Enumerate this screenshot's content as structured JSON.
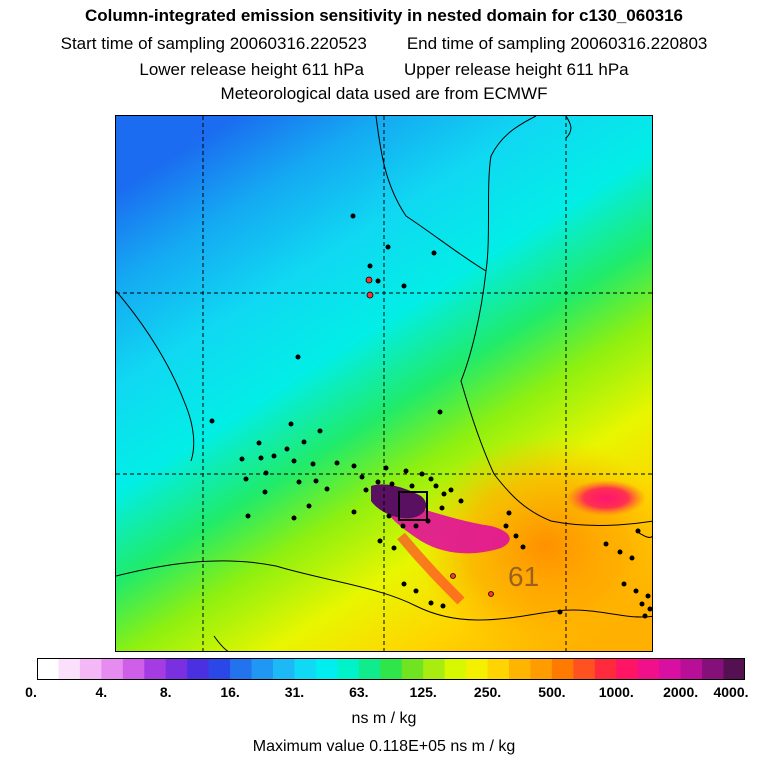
{
  "header": {
    "title": "Column-integrated emission sensitivity in nested domain for c130_060316",
    "start_label": "Start time of sampling 20060316.220523",
    "end_label": "End time of sampling 20060316.220803",
    "lower_label": "Lower release height  611 hPa",
    "upper_label": "Upper release height  611 hPa",
    "met_label": "Meteorological data used are from ECMWF"
  },
  "map": {
    "contour_label": "61"
  },
  "colorbar": {
    "colors": [
      "#ffffff",
      "#fbe0fb",
      "#f3b8f5",
      "#e68cf0",
      "#cf5fe9",
      "#a43be3",
      "#7a2fe0",
      "#4b30e2",
      "#2c47e8",
      "#2473ee",
      "#1f97f3",
      "#1db9f6",
      "#10d9f5",
      "#00eef0",
      "#00f2c8",
      "#10ec8c",
      "#30e54a",
      "#70e420",
      "#a8ec10",
      "#d8f800",
      "#f4f000",
      "#ffd400",
      "#ffb400",
      "#ff9c00",
      "#ff7a00",
      "#ff5220",
      "#ff2a3c",
      "#ff1466",
      "#f0108a",
      "#d80fa0",
      "#b80e98",
      "#86107a",
      "#541050"
    ],
    "ticks": [
      "0.",
      "4.",
      "8.",
      "16.",
      "31.",
      "63.",
      "125.",
      "250.",
      "500.",
      "1000.",
      "2000.",
      "4000."
    ],
    "units": "ns m / kg",
    "max_value": "Maximum value  0.118E+05 ns m / kg"
  }
}
